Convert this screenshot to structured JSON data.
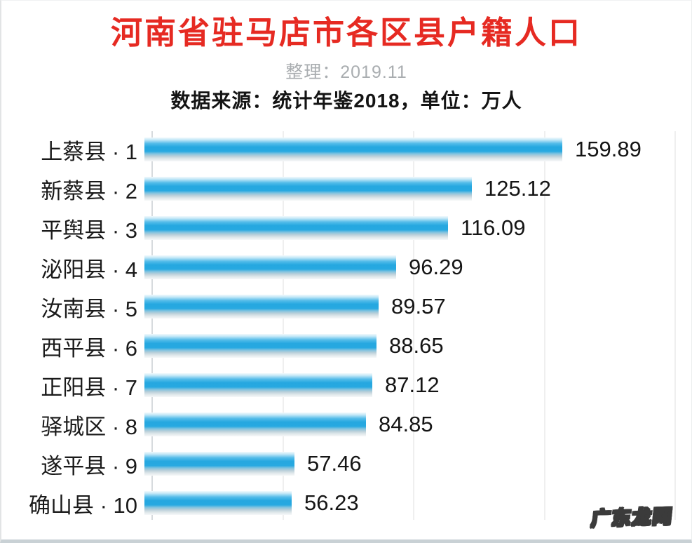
{
  "header": {
    "title": "河南省驻马店市各区县户籍人口",
    "compiled": "整理：2019.11",
    "source": "数据来源：统计年鉴2018，单位：万人"
  },
  "chart_data": {
    "type": "bar",
    "orientation": "horizontal",
    "title": "河南省驻马店市各区县户籍人口",
    "unit": "万人",
    "source": "统计年鉴2018",
    "categories": [
      "上蔡县 · 1",
      "新蔡县 · 2",
      "平舆县 · 3",
      "泌阳县 · 4",
      "汝南县 · 5",
      "西平县 · 6",
      "正阳县 · 7",
      "驿城区 · 8",
      "遂平县 · 9",
      "确山县 · 10"
    ],
    "values": [
      159.89,
      125.12,
      116.09,
      96.29,
      89.57,
      88.65,
      87.12,
      84.85,
      57.46,
      56.23
    ],
    "xlim": [
      0,
      200
    ],
    "gridlines_every": 50,
    "grid": true,
    "legend_position": "none",
    "bar_color": "#29a9e1",
    "value_labels_shown": true
  },
  "watermark": {
    "text": "广东龙网"
  },
  "colors": {
    "title_red": "#e62a22",
    "subtitle_gray": "#a9adb0",
    "text_dark": "#1a1a1a",
    "bar_blue": "#29a9e1",
    "axis_gray": "#d7dbde"
  }
}
